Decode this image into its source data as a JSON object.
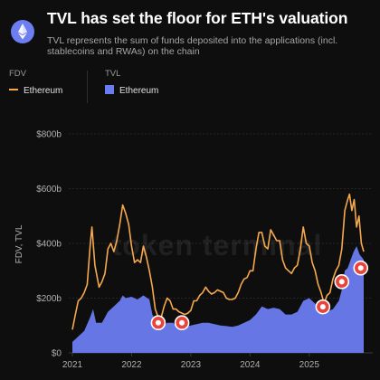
{
  "header": {
    "title": "TVL has set the floor for ETH's valuation",
    "subtitle": "TVL represents the sum of funds deposited into the applications (incl. stablecoins and RWAs) on the chain",
    "logo_icon": "ethereum-icon"
  },
  "legend": {
    "fdv": {
      "title": "FDV",
      "entry": "Ethereum",
      "color": "#f5a94c"
    },
    "tvl": {
      "title": "TVL",
      "entry": "Ethereum",
      "color": "#6b7cf0"
    }
  },
  "watermark": "token terminal",
  "chart_data": {
    "type": "line",
    "title": "TVL has set the floor for ETH's valuation",
    "subtitle": "TVL represents the sum of funds deposited into the applications (incl. stablecoins and RWAs) on the chain",
    "ylabel": "FDV, TVL",
    "xlabel": "",
    "ylim": [
      0,
      800
    ],
    "xlim": [
      2021.0,
      2025.92
    ],
    "y_ticks": [
      {
        "value": 0,
        "label": "$0"
      },
      {
        "value": 200,
        "label": "$200b"
      },
      {
        "value": 400,
        "label": "$400b"
      },
      {
        "value": 600,
        "label": "$600b"
      },
      {
        "value": 800,
        "label": "$800b"
      }
    ],
    "x_ticks": [
      {
        "value": 2021,
        "label": "2021"
      },
      {
        "value": 2022,
        "label": "2022"
      },
      {
        "value": 2023,
        "label": "2023"
      },
      {
        "value": 2024,
        "label": "2024"
      },
      {
        "value": 2025,
        "label": "2025"
      }
    ],
    "grid": true,
    "legend_position": "top-left",
    "units": "USD billions",
    "series": [
      {
        "name": "Ethereum",
        "legend_group": "FDV",
        "style": "line",
        "color": "#f5a94c",
        "points": [
          [
            2021.0,
            85
          ],
          [
            2021.05,
            140
          ],
          [
            2021.1,
            190
          ],
          [
            2021.15,
            200
          ],
          [
            2021.2,
            220
          ],
          [
            2021.25,
            250
          ],
          [
            2021.3,
            390
          ],
          [
            2021.33,
            460
          ],
          [
            2021.38,
            320
          ],
          [
            2021.45,
            240
          ],
          [
            2021.5,
            260
          ],
          [
            2021.55,
            290
          ],
          [
            2021.6,
            380
          ],
          [
            2021.65,
            400
          ],
          [
            2021.7,
            370
          ],
          [
            2021.75,
            410
          ],
          [
            2021.8,
            470
          ],
          [
            2021.85,
            540
          ],
          [
            2021.9,
            510
          ],
          [
            2021.95,
            470
          ],
          [
            2022.0,
            390
          ],
          [
            2022.05,
            330
          ],
          [
            2022.1,
            340
          ],
          [
            2022.15,
            330
          ],
          [
            2022.2,
            390
          ],
          [
            2022.25,
            350
          ],
          [
            2022.3,
            300
          ],
          [
            2022.35,
            240
          ],
          [
            2022.4,
            160
          ],
          [
            2022.45,
            130
          ],
          [
            2022.5,
            130
          ],
          [
            2022.55,
            170
          ],
          [
            2022.6,
            200
          ],
          [
            2022.65,
            190
          ],
          [
            2022.7,
            160
          ],
          [
            2022.75,
            160
          ],
          [
            2022.8,
            150
          ],
          [
            2022.85,
            145
          ],
          [
            2022.9,
            140
          ],
          [
            2022.95,
            145
          ],
          [
            2023.0,
            155
          ],
          [
            2023.05,
            190
          ],
          [
            2023.1,
            190
          ],
          [
            2023.15,
            210
          ],
          [
            2023.2,
            220
          ],
          [
            2023.25,
            240
          ],
          [
            2023.3,
            225
          ],
          [
            2023.35,
            215
          ],
          [
            2023.4,
            220
          ],
          [
            2023.45,
            230
          ],
          [
            2023.5,
            225
          ],
          [
            2023.55,
            220
          ],
          [
            2023.6,
            200
          ],
          [
            2023.65,
            195
          ],
          [
            2023.7,
            195
          ],
          [
            2023.75,
            200
          ],
          [
            2023.8,
            220
          ],
          [
            2023.85,
            250
          ],
          [
            2023.9,
            270
          ],
          [
            2023.95,
            275
          ],
          [
            2024.0,
            300
          ],
          [
            2024.05,
            300
          ],
          [
            2024.1,
            380
          ],
          [
            2024.15,
            440
          ],
          [
            2024.2,
            440
          ],
          [
            2024.25,
            390
          ],
          [
            2024.3,
            380
          ],
          [
            2024.35,
            450
          ],
          [
            2024.4,
            430
          ],
          [
            2024.45,
            410
          ],
          [
            2024.5,
            410
          ],
          [
            2024.55,
            340
          ],
          [
            2024.6,
            310
          ],
          [
            2024.65,
            300
          ],
          [
            2024.7,
            290
          ],
          [
            2024.75,
            310
          ],
          [
            2024.8,
            320
          ],
          [
            2024.85,
            380
          ],
          [
            2024.9,
            460
          ],
          [
            2024.95,
            400
          ],
          [
            2025.0,
            390
          ],
          [
            2025.05,
            330
          ],
          [
            2025.1,
            300
          ],
          [
            2025.15,
            250
          ],
          [
            2025.2,
            220
          ],
          [
            2025.25,
            180
          ],
          [
            2025.3,
            210
          ],
          [
            2025.35,
            220
          ],
          [
            2025.4,
            270
          ],
          [
            2025.45,
            300
          ],
          [
            2025.5,
            320
          ],
          [
            2025.55,
            380
          ],
          [
            2025.6,
            520
          ],
          [
            2025.65,
            560
          ],
          [
            2025.68,
            580
          ],
          [
            2025.72,
            520
          ],
          [
            2025.76,
            560
          ],
          [
            2025.8,
            460
          ],
          [
            2025.84,
            500
          ],
          [
            2025.88,
            400
          ],
          [
            2025.92,
            370
          ]
        ]
      },
      {
        "name": "Ethereum",
        "legend_group": "TVL",
        "style": "area",
        "color": "#6b7cf0",
        "points": [
          [
            2021.0,
            40
          ],
          [
            2021.1,
            60
          ],
          [
            2021.2,
            80
          ],
          [
            2021.3,
            130
          ],
          [
            2021.35,
            160
          ],
          [
            2021.4,
            110
          ],
          [
            2021.5,
            110
          ],
          [
            2021.6,
            150
          ],
          [
            2021.7,
            170
          ],
          [
            2021.8,
            190
          ],
          [
            2021.85,
            210
          ],
          [
            2021.9,
            200
          ],
          [
            2022.0,
            205
          ],
          [
            2022.1,
            195
          ],
          [
            2022.2,
            210
          ],
          [
            2022.3,
            195
          ],
          [
            2022.35,
            140
          ],
          [
            2022.45,
            100
          ],
          [
            2022.5,
            95
          ],
          [
            2022.6,
            110
          ],
          [
            2022.7,
            110
          ],
          [
            2022.8,
            90
          ],
          [
            2022.9,
            95
          ],
          [
            2023.0,
            100
          ],
          [
            2023.1,
            105
          ],
          [
            2023.2,
            110
          ],
          [
            2023.3,
            110
          ],
          [
            2023.4,
            105
          ],
          [
            2023.5,
            100
          ],
          [
            2023.6,
            98
          ],
          [
            2023.7,
            95
          ],
          [
            2023.8,
            100
          ],
          [
            2023.9,
            110
          ],
          [
            2024.0,
            120
          ],
          [
            2024.1,
            140
          ],
          [
            2024.2,
            170
          ],
          [
            2024.3,
            160
          ],
          [
            2024.4,
            165
          ],
          [
            2024.5,
            160
          ],
          [
            2024.6,
            140
          ],
          [
            2024.7,
            140
          ],
          [
            2024.8,
            150
          ],
          [
            2024.9,
            190
          ],
          [
            2025.0,
            200
          ],
          [
            2025.1,
            180
          ],
          [
            2025.2,
            150
          ],
          [
            2025.25,
            140
          ],
          [
            2025.3,
            150
          ],
          [
            2025.4,
            160
          ],
          [
            2025.5,
            190
          ],
          [
            2025.55,
            230
          ],
          [
            2025.6,
            300
          ],
          [
            2025.65,
            310
          ],
          [
            2025.7,
            340
          ],
          [
            2025.75,
            370
          ],
          [
            2025.8,
            390
          ],
          [
            2025.85,
            360
          ],
          [
            2025.92,
            340
          ]
        ]
      }
    ],
    "annotations": [
      {
        "type": "marker",
        "x": 2022.45,
        "y": 110
      },
      {
        "type": "marker",
        "x": 2022.85,
        "y": 110
      },
      {
        "type": "marker",
        "x": 2025.23,
        "y": 168
      },
      {
        "type": "marker",
        "x": 2025.55,
        "y": 260
      },
      {
        "type": "marker",
        "x": 2025.87,
        "y": 310
      }
    ]
  }
}
